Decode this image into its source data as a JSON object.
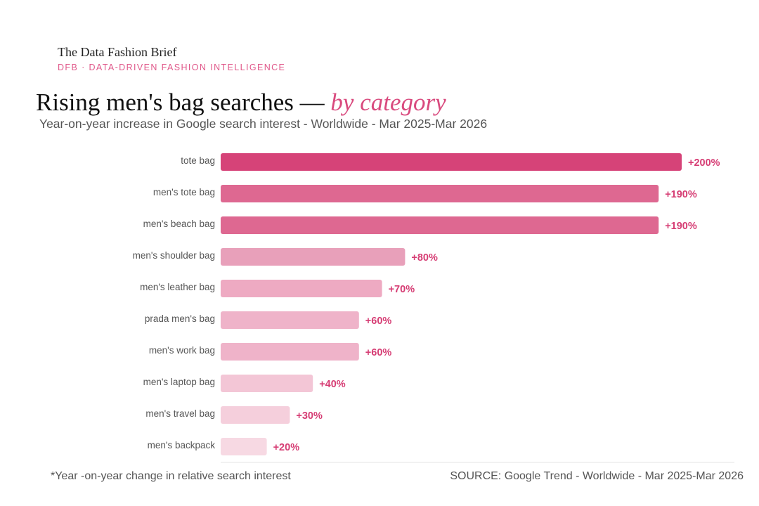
{
  "header": {
    "brand": "The Data Fashion Brief",
    "tagline": "DFB · DATA-DRIVEN FASHION INTELLIGENCE"
  },
  "chart_data": {
    "type": "bar",
    "orientation": "horizontal",
    "title": "Rising men's bag searches — ",
    "title_emphasis": "by category",
    "subtitle": "Year-on-year increase in Google search interest - Worldwide - Mar 2025-Mar 2026",
    "categories": [
      "tote bag",
      "men's tote bag",
      "men's beach bag",
      "men's shoulder bag",
      "men's leather bag",
      "prada men's bag",
      "men's work bag",
      "men's laptop bag",
      "men's travel bag",
      "men's backpack"
    ],
    "values": [
      200,
      190,
      190,
      80,
      70,
      60,
      60,
      40,
      30,
      20
    ],
    "labels": [
      "+200%",
      "+190%",
      "+190%",
      "+80%",
      "+70%",
      "+60%",
      "+60%",
      "+40%",
      "+30%",
      "+20%"
    ],
    "colors": [
      "#d64378",
      "#de6891",
      "#de6891",
      "#e8a0ba",
      "#eeaac2",
      "#efb3c9",
      "#efb3c9",
      "#f3c6d6",
      "#f5cfdc",
      "#f7d9e3"
    ],
    "label_color": "#d63d74",
    "xlim": [
      0,
      200
    ],
    "unit": "%"
  },
  "footer": {
    "note": "*Year -on-year change in relative search interest",
    "source": "SOURCE: Google Trend - Worldwide - Mar 2025-Mar 2026"
  }
}
